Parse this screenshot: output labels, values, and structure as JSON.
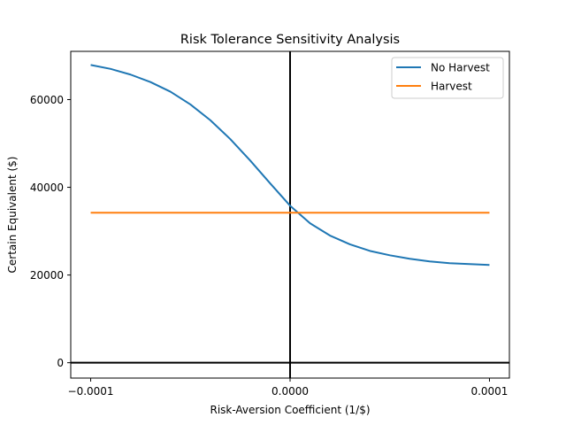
{
  "chart_data": {
    "type": "line",
    "title": "Risk Tolerance Sensitivity Analysis",
    "xlabel": "Risk-Aversion Coefficient (1/$)",
    "ylabel": "Certain Equivalent ($)",
    "xlim": [
      -0.00011,
      0.00011
    ],
    "ylim": [
      -3500,
      71000
    ],
    "xticks": [
      -0.0001,
      0.0,
      0.0001
    ],
    "xtick_labels": [
      "−0.0001",
      "0.0000",
      "0.0001"
    ],
    "yticks": [
      0,
      20000,
      40000,
      60000
    ],
    "ytick_labels": [
      "0",
      "20000",
      "40000",
      "60000"
    ],
    "grid": false,
    "legend": "top-right",
    "reference_lines": {
      "x_zero": true,
      "y_zero": true,
      "color": "#000000"
    },
    "series": [
      {
        "name": "No Harvest",
        "color": "#1f77b4",
        "x": [
          -0.0001,
          -9e-05,
          -8e-05,
          -7e-05,
          -6e-05,
          -5e-05,
          -4e-05,
          -3e-05,
          -2e-05,
          -1e-05,
          0.0,
          1e-05,
          2e-05,
          3e-05,
          4e-05,
          5e-05,
          6e-05,
          7e-05,
          8e-05,
          9e-05,
          0.0001
        ],
        "y": [
          67900,
          67000,
          65700,
          64000,
          61800,
          58900,
          55300,
          51000,
          46100,
          40900,
          35800,
          31800,
          29000,
          27000,
          25500,
          24500,
          23700,
          23100,
          22700,
          22500,
          22300
        ]
      },
      {
        "name": "Harvest",
        "color": "#ff7f0e",
        "x": [
          -0.0001,
          0.0001
        ],
        "y": [
          34200,
          34200
        ]
      }
    ]
  }
}
